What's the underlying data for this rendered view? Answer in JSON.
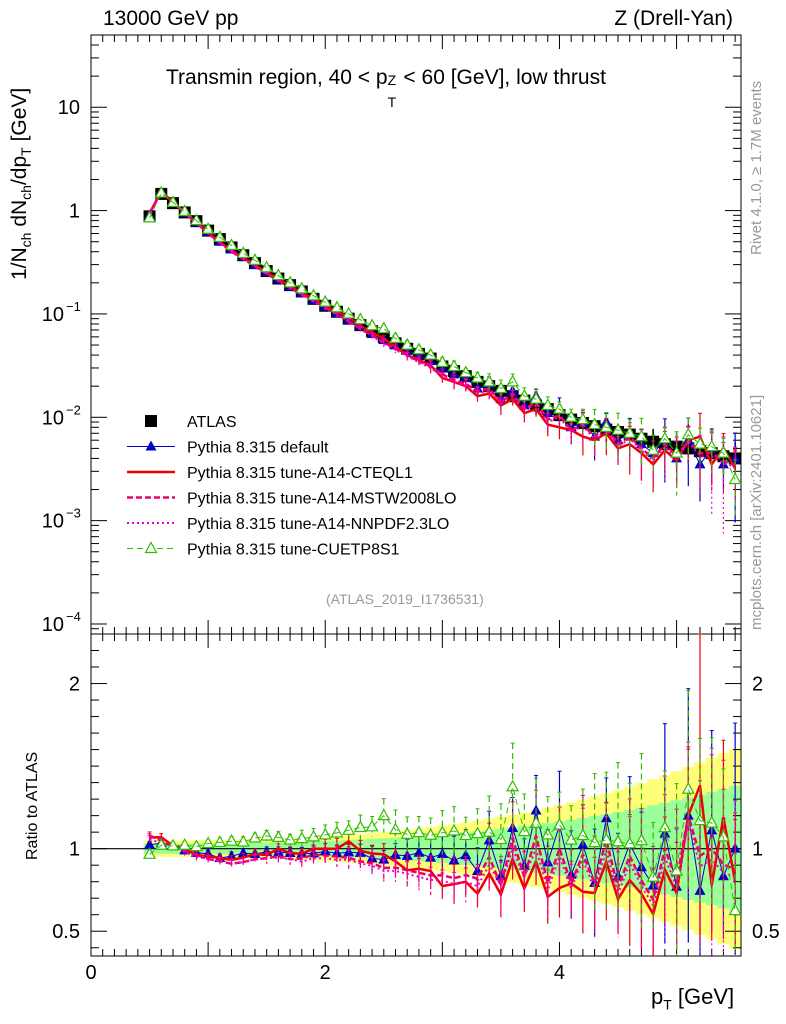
{
  "header": {
    "left": "13000 GeV pp",
    "right": "Z (Drell-Yan)",
    "ref": "(ATLAS_2019_I1736531)",
    "side_top": "Rivet 4.1.0, ≥ 1.7M events",
    "side_bottom": "mcplots.cern.ch [arXiv:2401.10621]"
  },
  "colors": {
    "atlas": "#000000",
    "default": "#0000cc",
    "cteql1": "#ee0000",
    "mstw": "#ee0066",
    "nnpdf": "#ee00cc",
    "cuetp8s1": "#33bb00",
    "band_yellow": "#ffff77",
    "band_green": "#99ff99"
  },
  "chart_data": [
    {
      "type": "scatter",
      "panel": "main",
      "title": "Transmin region, 40 < p_T^Z < 60 [GeV], low thrust",
      "title_parts": [
        "Transmin region, 40 < p",
        "Z",
        "T",
        " < 60 [GeV], low thrust"
      ],
      "ylabel": "1/N_ch dN_ch/dp_T [GeV]",
      "ylabel_parts": [
        "1/N",
        "ch",
        " dN",
        "ch",
        "/dp",
        "T",
        " [GeV]"
      ],
      "yscale": "log",
      "ylim": [
        8e-05,
        50
      ],
      "xlim": [
        0,
        5.55
      ],
      "yticks": [
        {
          "value": 10,
          "base": "10",
          "exp": ""
        },
        {
          "value": 1,
          "base": "1",
          "exp": ""
        },
        {
          "value": 0.1,
          "base": "10",
          "exp": "−1"
        },
        {
          "value": 0.01,
          "base": "10",
          "exp": "−2"
        },
        {
          "value": 0.001,
          "base": "10",
          "exp": "−3"
        },
        {
          "value": 0.0001,
          "base": "10",
          "exp": "−4"
        }
      ],
      "x": [
        0.5,
        0.6,
        0.7,
        0.8,
        0.9,
        1.0,
        1.1,
        1.2,
        1.3,
        1.4,
        1.5,
        1.6,
        1.7,
        1.8,
        1.9,
        2.0,
        2.1,
        2.2,
        2.3,
        2.4,
        2.5,
        2.6,
        2.7,
        2.8,
        2.9,
        3.0,
        3.1,
        3.2,
        3.3,
        3.4,
        3.5,
        3.6,
        3.7,
        3.8,
        3.9,
        4.0,
        4.1,
        4.2,
        4.3,
        4.4,
        4.5,
        4.6,
        4.7,
        4.8,
        4.9,
        5.0,
        5.1,
        5.2,
        5.3,
        5.4,
        5.5
      ],
      "series": [
        {
          "name": "ATLAS",
          "role": "data",
          "values": [
            0.88,
            1.45,
            1.18,
            0.96,
            0.79,
            0.64,
            0.53,
            0.44,
            0.37,
            0.31,
            0.26,
            0.22,
            0.19,
            0.165,
            0.14,
            0.12,
            0.105,
            0.09,
            0.078,
            0.068,
            0.06,
            0.052,
            0.046,
            0.041,
            0.037,
            0.031,
            0.028,
            0.025,
            0.022,
            0.02,
            0.018,
            0.016,
            0.0145,
            0.013,
            0.012,
            0.0105,
            0.0095,
            0.0088,
            0.0082,
            0.0076,
            0.0072,
            0.0068,
            0.0062,
            0.0058,
            0.0055,
            0.0052,
            0.005,
            0.0047,
            0.0045,
            0.0042,
            0.004
          ]
        },
        {
          "name": "Pythia 8.315 default",
          "role": "mc",
          "values": [
            0.9,
            1.5,
            1.2,
            0.95,
            0.77,
            0.62,
            0.5,
            0.42,
            0.36,
            0.3,
            0.255,
            0.215,
            0.185,
            0.16,
            0.136,
            0.118,
            0.102,
            0.088,
            0.076,
            0.064,
            0.056,
            0.05,
            0.044,
            0.04,
            0.035,
            0.03,
            0.026,
            0.024,
            0.019,
            0.021,
            0.015,
            0.018,
            0.013,
            0.016,
            0.011,
            0.012,
            0.008,
            0.009,
            0.0065,
            0.009,
            0.006,
            0.007,
            0.0055,
            0.0045,
            0.006,
            0.004,
            0.006,
            0.0035,
            0.005,
            0.0035,
            0.004
          ]
        },
        {
          "name": "Pythia 8.315 tune-A14-CTEQL1",
          "role": "mc",
          "values": [
            0.94,
            1.55,
            1.2,
            0.96,
            0.76,
            0.61,
            0.5,
            0.41,
            0.35,
            0.3,
            0.25,
            0.22,
            0.185,
            0.16,
            0.14,
            0.12,
            0.105,
            0.094,
            0.077,
            0.066,
            0.058,
            0.048,
            0.04,
            0.036,
            0.032,
            0.024,
            0.022,
            0.02,
            0.016,
            0.017,
            0.013,
            0.015,
            0.011,
            0.012,
            0.0085,
            0.008,
            0.0075,
            0.0065,
            0.006,
            0.007,
            0.005,
            0.0055,
            0.0045,
            0.0035,
            0.0048,
            0.0038,
            0.006,
            0.0065,
            0.0035,
            0.005,
            0.0032
          ]
        },
        {
          "name": "Pythia 8.315 tune-A14-MSTW2008LO",
          "role": "mc",
          "values": [
            0.95,
            1.52,
            1.2,
            0.95,
            0.76,
            0.6,
            0.49,
            0.4,
            0.34,
            0.29,
            0.245,
            0.21,
            0.178,
            0.155,
            0.135,
            0.115,
            0.1,
            0.085,
            0.072,
            0.062,
            0.053,
            0.046,
            0.04,
            0.035,
            0.031,
            0.026,
            0.023,
            0.021,
            0.018,
            0.019,
            0.014,
            0.017,
            0.012,
            0.014,
            0.0095,
            0.0105,
            0.0075,
            0.0085,
            0.0065,
            0.008,
            0.0055,
            0.0065,
            0.005,
            0.004,
            0.0055,
            0.0042,
            0.006,
            0.0045,
            0.0045,
            0.0038,
            0.0035
          ]
        },
        {
          "name": "Pythia 8.315 tune-A14-NNPDF2.3LO",
          "role": "mc",
          "values": [
            0.93,
            1.5,
            1.2,
            0.94,
            0.75,
            0.6,
            0.49,
            0.4,
            0.34,
            0.29,
            0.245,
            0.208,
            0.178,
            0.152,
            0.132,
            0.113,
            0.098,
            0.084,
            0.071,
            0.061,
            0.052,
            0.045,
            0.039,
            0.034,
            0.03,
            0.025,
            0.022,
            0.02,
            0.017,
            0.018,
            0.014,
            0.016,
            0.012,
            0.013,
            0.009,
            0.01,
            0.0072,
            0.0082,
            0.0062,
            0.0075,
            0.0052,
            0.0062,
            0.0048,
            0.0038,
            0.0052,
            0.004,
            0.0058,
            0.0042,
            0.0042,
            0.0036,
            0.0033
          ]
        },
        {
          "name": "Pythia 8.315 tune-CUETP8S1",
          "role": "mc",
          "values": [
            0.85,
            1.48,
            1.2,
            0.98,
            0.8,
            0.66,
            0.55,
            0.46,
            0.385,
            0.33,
            0.28,
            0.235,
            0.2,
            0.175,
            0.15,
            0.13,
            0.115,
            0.1,
            0.088,
            0.077,
            0.072,
            0.058,
            0.05,
            0.045,
            0.04,
            0.034,
            0.031,
            0.027,
            0.024,
            0.022,
            0.019,
            0.022,
            0.016,
            0.015,
            0.013,
            0.012,
            0.01,
            0.0095,
            0.0085,
            0.008,
            0.0075,
            0.007,
            0.0065,
            0.0048,
            0.0062,
            0.0045,
            0.0068,
            0.0055,
            0.0052,
            0.0045,
            0.0025
          ]
        }
      ],
      "legend": {
        "placement": "lower-left"
      }
    },
    {
      "type": "scatter",
      "panel": "ratio",
      "ylabel": "Ratio to ATLAS",
      "ylim": [
        0.35,
        2.3
      ],
      "yticks": [
        0.5,
        1,
        2
      ],
      "xlabel": "p_T [GeV]",
      "xlabel_parts": [
        "p",
        "T",
        " [GeV]"
      ],
      "xticks": [
        0,
        2,
        4
      ],
      "xlim": [
        0,
        5.55
      ],
      "reference_line": 1
    }
  ]
}
